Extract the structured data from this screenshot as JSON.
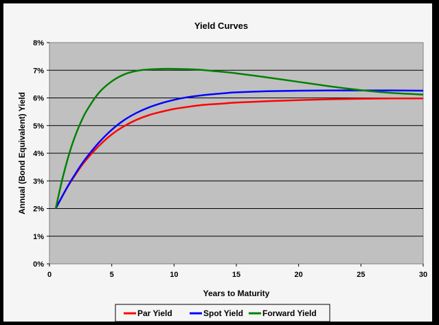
{
  "chart_data": {
    "type": "line",
    "title": "Yield Curves",
    "xlabel": "Years to Maturity",
    "ylabel": "Annual (Bond Equivalent) Yield",
    "xlim": [
      0,
      30
    ],
    "ylim": [
      0,
      8
    ],
    "x_ticks": [
      "0",
      "5",
      "10",
      "15",
      "20",
      "25",
      "30"
    ],
    "y_ticks": [
      "0%",
      "1%",
      "2%",
      "3%",
      "4%",
      "5%",
      "6%",
      "7%",
      "8%"
    ],
    "grid": "horizontal",
    "legend_position": "bottom",
    "x": [
      0.5,
      1,
      1.5,
      2,
      2.5,
      3,
      4,
      5,
      6,
      7,
      8,
      9,
      10,
      11,
      12,
      13,
      14,
      15,
      17.5,
      20,
      22.5,
      25,
      27.5,
      30
    ],
    "series": [
      {
        "name": "Par Yield",
        "color": "#ff0000",
        "values": [
          2.0,
          2.42,
          2.82,
          3.17,
          3.5,
          3.79,
          4.28,
          4.68,
          4.98,
          5.21,
          5.38,
          5.5,
          5.6,
          5.67,
          5.73,
          5.77,
          5.8,
          5.83,
          5.88,
          5.92,
          5.95,
          5.97,
          5.98,
          5.98
        ]
      },
      {
        "name": "Spot Yield",
        "color": "#0000ff",
        "values": [
          2.0,
          2.42,
          2.83,
          3.2,
          3.55,
          3.86,
          4.4,
          4.85,
          5.2,
          5.46,
          5.66,
          5.81,
          5.93,
          6.02,
          6.08,
          6.13,
          6.17,
          6.2,
          6.24,
          6.26,
          6.27,
          6.27,
          6.27,
          6.26
        ]
      },
      {
        "name": "Forward Yield",
        "color": "#008000",
        "values": [
          2.0,
          3.0,
          3.85,
          4.55,
          5.1,
          5.55,
          6.2,
          6.6,
          6.85,
          6.98,
          7.03,
          7.05,
          7.05,
          7.04,
          7.02,
          6.98,
          6.94,
          6.89,
          6.74,
          6.58,
          6.42,
          6.28,
          6.18,
          6.12
        ]
      }
    ]
  }
}
